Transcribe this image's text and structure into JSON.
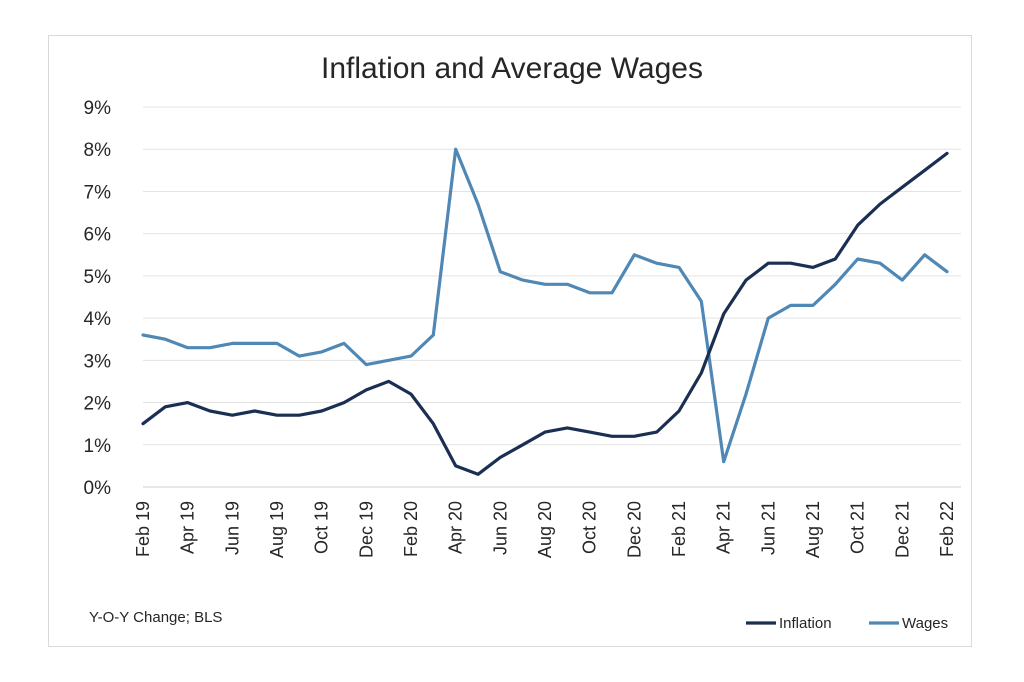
{
  "chart_data": {
    "type": "line",
    "title": "Inflation and Average Wages",
    "note": "Y-O-Y Change; BLS",
    "ylim": [
      0,
      9
    ],
    "yticks": [
      "0%",
      "1%",
      "2%",
      "3%",
      "4%",
      "5%",
      "6%",
      "7%",
      "8%",
      "9%"
    ],
    "grid": true,
    "legend_position": "bottom-right",
    "x": [
      "Feb 19",
      "Mar 19",
      "Apr 19",
      "May 19",
      "Jun 19",
      "Jul 19",
      "Aug 19",
      "Sep 19",
      "Oct 19",
      "Nov 19",
      "Dec 19",
      "Jan 20",
      "Feb 20",
      "Mar 20",
      "Apr 20",
      "May 20",
      "Jun 20",
      "Jul 20",
      "Aug 20",
      "Sep 20",
      "Oct 20",
      "Nov 20",
      "Dec 20",
      "Jan 21",
      "Feb 21",
      "Mar 21",
      "Apr 21",
      "May 21",
      "Jun 21",
      "Jul 21",
      "Aug 21",
      "Sep 21",
      "Oct 21",
      "Nov 21",
      "Dec 21",
      "Jan 22",
      "Feb 22"
    ],
    "xtick_labels": [
      "Feb 19",
      "Apr 19",
      "Jun 19",
      "Aug 19",
      "Oct 19",
      "Dec 19",
      "Feb 20",
      "Apr 20",
      "Jun 20",
      "Aug 20",
      "Oct 20",
      "Dec 20",
      "Feb 21",
      "Apr 21",
      "Jun 21",
      "Aug 21",
      "Oct 21",
      "Dec 21",
      "Feb 22"
    ],
    "series": [
      {
        "name": "Inflation",
        "color": "#1b2f52",
        "values": [
          1.5,
          1.9,
          2.0,
          1.8,
          1.7,
          1.8,
          1.7,
          1.7,
          1.8,
          2.0,
          2.3,
          2.5,
          2.2,
          1.5,
          0.5,
          0.3,
          0.7,
          1.0,
          1.3,
          1.4,
          1.3,
          1.2,
          1.2,
          1.3,
          1.8,
          2.7,
          4.1,
          4.9,
          5.3,
          5.3,
          5.2,
          5.4,
          6.2,
          6.7,
          7.1,
          7.5,
          7.9
        ]
      },
      {
        "name": "Wages",
        "color": "#4f87b5",
        "values": [
          3.6,
          3.5,
          3.3,
          3.3,
          3.4,
          3.4,
          3.4,
          3.1,
          3.2,
          3.4,
          2.9,
          3.0,
          3.1,
          3.6,
          8.0,
          6.7,
          5.1,
          4.9,
          4.8,
          4.8,
          4.6,
          4.6,
          5.5,
          5.3,
          5.2,
          4.4,
          0.6,
          2.2,
          4.0,
          4.3,
          4.3,
          4.8,
          5.4,
          5.3,
          4.9,
          5.5,
          5.1
        ]
      }
    ]
  }
}
